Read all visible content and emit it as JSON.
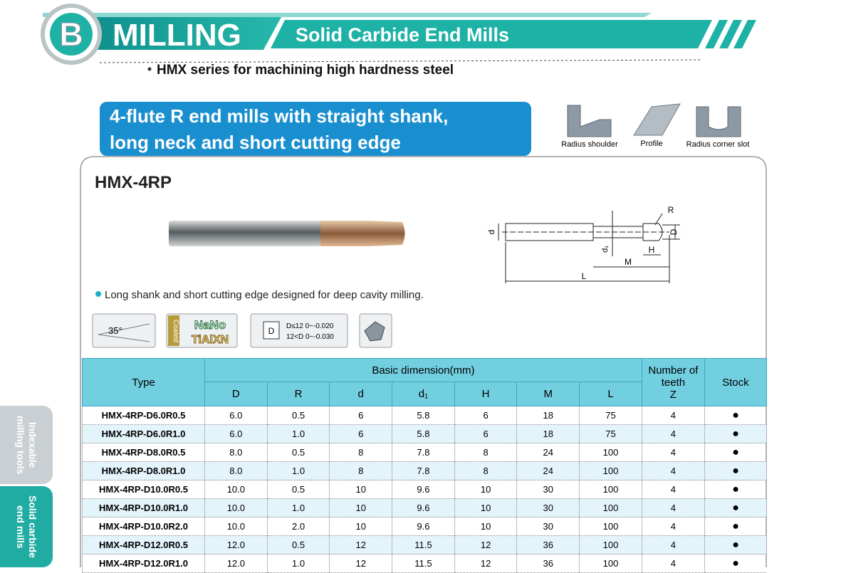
{
  "header": {
    "letter": "B",
    "title": "MILLING",
    "subtitle": "Solid Carbide End Mills",
    "series": "HMX series for machining high hardness steel"
  },
  "banner": {
    "lines": [
      "4-flute R end mills with straight shank,",
      "long neck and short cutting edge"
    ]
  },
  "applications": [
    "Radius shoulder",
    "Profile",
    "Radius corner slot"
  ],
  "product": {
    "code": "HMX-4RP",
    "feature": "Long shank and short cutting edge designed for deep cavity milling."
  },
  "drawing": {
    "R": "R",
    "D": "D",
    "d": "d",
    "d1": "d₁",
    "H": "H",
    "M": "M",
    "L": "L"
  },
  "icons": {
    "angle": "35°",
    "coated": "Coated",
    "nano": "NaNo",
    "coating": "TiAlXN",
    "tolerance": {
      "symbol": "D",
      "lines": [
        "D≤12  0~-0.020",
        "12<D  0~-0.030"
      ]
    }
  },
  "table": {
    "headers": {
      "type": "Type",
      "basic": "Basic dimension(mm)",
      "cols": [
        "D",
        "R",
        "d",
        "d₁",
        "H",
        "M",
        "L"
      ],
      "teeth": "Number of teeth",
      "z": "Z",
      "stock": "Stock"
    },
    "rows": [
      [
        "HMX-4RP-D6.0R0.5",
        "6.0",
        "0.5",
        "6",
        "5.8",
        "6",
        "18",
        "75",
        "4",
        "●"
      ],
      [
        "HMX-4RP-D6.0R1.0",
        "6.0",
        "1.0",
        "6",
        "5.8",
        "6",
        "18",
        "75",
        "4",
        "●"
      ],
      [
        "HMX-4RP-D8.0R0.5",
        "8.0",
        "0.5",
        "8",
        "7.8",
        "8",
        "24",
        "100",
        "4",
        "●"
      ],
      [
        "HMX-4RP-D8.0R1.0",
        "8.0",
        "1.0",
        "8",
        "7.8",
        "8",
        "24",
        "100",
        "4",
        "●"
      ],
      [
        "HMX-4RP-D10.0R0.5",
        "10.0",
        "0.5",
        "10",
        "9.6",
        "10",
        "30",
        "100",
        "4",
        "●"
      ],
      [
        "HMX-4RP-D10.0R1.0",
        "10.0",
        "1.0",
        "10",
        "9.6",
        "10",
        "30",
        "100",
        "4",
        "●"
      ],
      [
        "HMX-4RP-D10.0R2.0",
        "10.0",
        "2.0",
        "10",
        "9.6",
        "10",
        "30",
        "100",
        "4",
        "●"
      ],
      [
        "HMX-4RP-D12.0R0.5",
        "12.0",
        "0.5",
        "12",
        "11.5",
        "12",
        "36",
        "100",
        "4",
        "●"
      ],
      [
        "HMX-4RP-D12.0R1.0",
        "12.0",
        "1.0",
        "12",
        "11.5",
        "12",
        "36",
        "100",
        "4",
        "●"
      ]
    ]
  },
  "side_tabs": [
    [
      "Indexable",
      "milling tools"
    ],
    [
      "Solid carbide",
      "end mills"
    ]
  ]
}
